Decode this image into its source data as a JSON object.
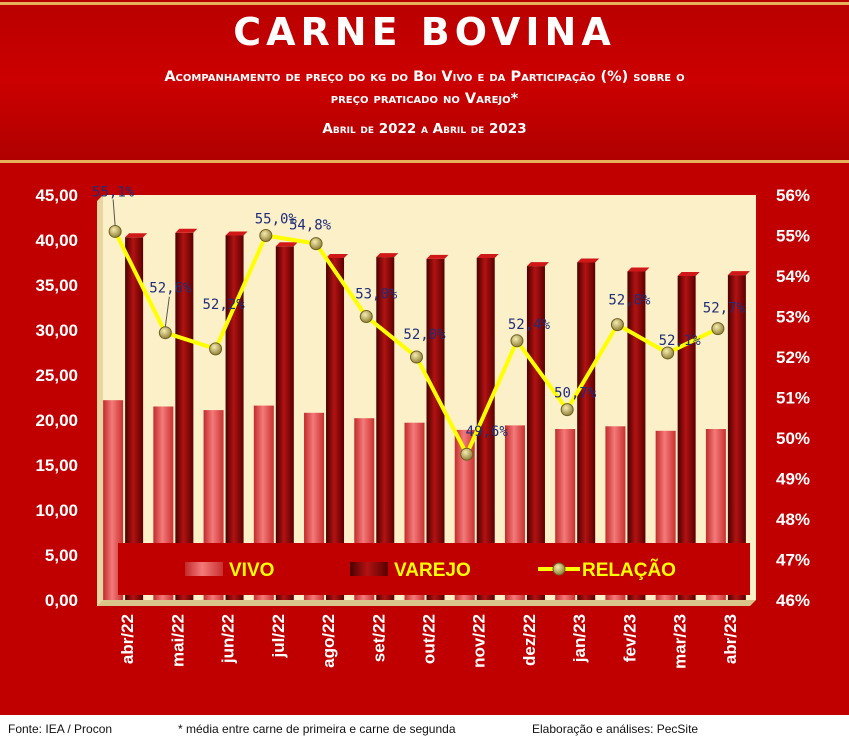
{
  "header": {
    "title": "CARNE BOVINA",
    "subtitle_line1": "Acompanhamento de preço do kg do Boi Vivo e da Participação (%) sobre o",
    "subtitle_line2": "preço praticado no Varejo*",
    "period": "Abril de 2022 a Abril de 2023"
  },
  "footer": {
    "source": "Fonte: IEA / Procon",
    "note": "* média entre carne de primeira e carne de segunda",
    "credit": "Elaboração e análises: PecSite"
  },
  "colors": {
    "background": "#c00000",
    "plot_background": "#fcf0c8",
    "vivo": "#e24545",
    "varejo": "#7a0000",
    "relacao_line": "#ffff00",
    "relacao_marker": "#b8a040",
    "relacao_label": "#1f2d7a",
    "legend_text": "#ffff00"
  },
  "chart_data": {
    "type": "bar",
    "categories": [
      "abr/22",
      "mai/22",
      "jun/22",
      "jul/22",
      "ago/22",
      "set/22",
      "out/22",
      "nov/22",
      "dez/22",
      "jan/23",
      "fev/23",
      "mar/23",
      "abr/23"
    ],
    "series": [
      {
        "name": "VIVO",
        "type": "bar",
        "axis": "left",
        "values": [
          22.2,
          21.5,
          21.1,
          21.6,
          20.8,
          20.2,
          19.7,
          18.9,
          19.4,
          19.0,
          19.3,
          18.8,
          19.0
        ]
      },
      {
        "name": "VAREJO",
        "type": "bar",
        "axis": "left",
        "values": [
          40.3,
          40.8,
          40.5,
          39.3,
          38.0,
          38.1,
          37.9,
          38.0,
          37.1,
          37.5,
          36.5,
          36.0,
          36.1
        ]
      },
      {
        "name": "RELAÇÃO",
        "type": "line",
        "axis": "right",
        "values": [
          55.1,
          52.6,
          52.2,
          55.0,
          54.8,
          53.0,
          52.0,
          49.6,
          52.4,
          50.7,
          52.8,
          52.1,
          52.7
        ],
        "labels": [
          "55,1%",
          "52,6%",
          "52,2%",
          "55,0%",
          "54,8%",
          "53,0%",
          "52,0%",
          "49,6%",
          "52,4%",
          "50,7%",
          "52,8%",
          "52,1%",
          "52,7%"
        ]
      }
    ],
    "y_left": {
      "ylim": [
        0,
        45
      ],
      "ticks": [
        "0,00",
        "5,00",
        "10,00",
        "15,00",
        "20,00",
        "25,00",
        "30,00",
        "35,00",
        "40,00",
        "45,00"
      ]
    },
    "y_right": {
      "ylim": [
        46,
        56
      ],
      "ticks": [
        "46%",
        "47%",
        "48%",
        "49%",
        "50%",
        "51%",
        "52%",
        "53%",
        "54%",
        "55%",
        "56%"
      ]
    },
    "legend": {
      "placement": "bottom-inside",
      "entries": [
        "VIVO",
        "VAREJO",
        "RELAÇÃO"
      ]
    },
    "grid": false
  }
}
